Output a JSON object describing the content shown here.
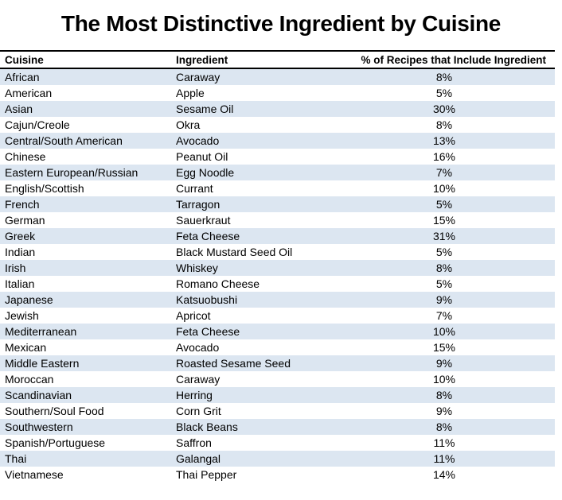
{
  "title": "The Most Distinctive Ingredient by Cuisine",
  "chart_data": {
    "type": "table",
    "title": "The Most Distinctive Ingredient by Cuisine",
    "columns": [
      "Cuisine",
      "Ingredient",
      "% of Recipes that Include Ingredient"
    ],
    "rows": [
      [
        "African",
        "Caraway",
        "8%"
      ],
      [
        "American",
        "Apple",
        "5%"
      ],
      [
        "Asian",
        "Sesame Oil",
        "30%"
      ],
      [
        "Cajun/Creole",
        "Okra",
        "8%"
      ],
      [
        "Central/South American",
        "Avocado",
        "13%"
      ],
      [
        "Chinese",
        "Peanut Oil",
        "16%"
      ],
      [
        "Eastern European/Russian",
        "Egg Noodle",
        "7%"
      ],
      [
        "English/Scottish",
        "Currant",
        "10%"
      ],
      [
        "French",
        "Tarragon",
        "5%"
      ],
      [
        "German",
        "Sauerkraut",
        "15%"
      ],
      [
        "Greek",
        "Feta Cheese",
        "31%"
      ],
      [
        "Indian",
        "Black Mustard Seed Oil",
        "5%"
      ],
      [
        "Irish",
        "Whiskey",
        "8%"
      ],
      [
        "Italian",
        "Romano Cheese",
        "5%"
      ],
      [
        "Japanese",
        "Katsuobushi",
        "9%"
      ],
      [
        "Jewish",
        "Apricot",
        "7%"
      ],
      [
        "Mediterranean",
        "Feta Cheese",
        "10%"
      ],
      [
        "Mexican",
        "Avocado",
        "15%"
      ],
      [
        "Middle Eastern",
        "Roasted Sesame Seed",
        "9%"
      ],
      [
        "Moroccan",
        "Caraway",
        "10%"
      ],
      [
        "Scandinavian",
        "Herring",
        "8%"
      ],
      [
        "Southern/Soul Food",
        "Corn Grit",
        "9%"
      ],
      [
        "Southwestern",
        "Black Beans",
        "8%"
      ],
      [
        "Spanish/Portuguese",
        "Saffron",
        "11%"
      ],
      [
        "Thai",
        "Galangal",
        "11%"
      ],
      [
        "Vietnamese",
        "Thai Pepper",
        "14%"
      ]
    ],
    "percent_values": [
      8,
      5,
      30,
      8,
      13,
      16,
      7,
      10,
      5,
      15,
      31,
      5,
      8,
      5,
      9,
      7,
      10,
      15,
      9,
      10,
      8,
      9,
      8,
      11,
      11,
      14
    ]
  },
  "style": {
    "stripe_color": "#dce6f1",
    "border_color": "#000000",
    "text_color": "#000000"
  }
}
